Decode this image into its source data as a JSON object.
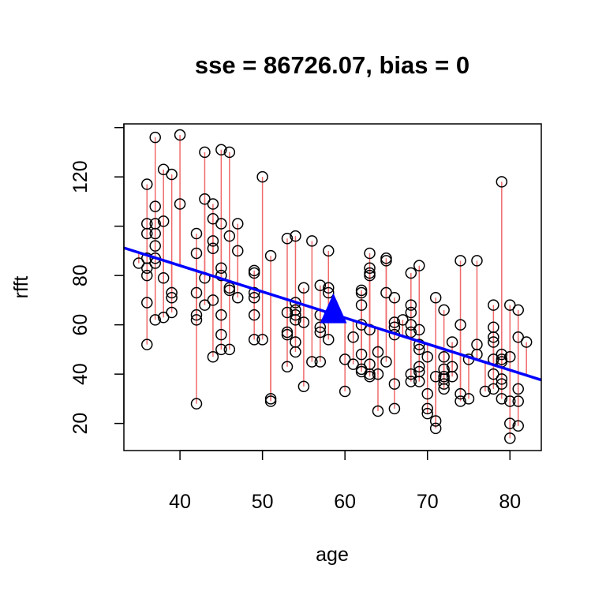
{
  "chart_data": {
    "type": "scatter",
    "title": "sse = 86726.07, bias = 0",
    "xlabel": "age",
    "ylabel": "rfft",
    "xlim": [
      33.2,
      83.8
    ],
    "ylim": [
      9.0,
      141.5
    ],
    "x_ticks": [
      40,
      50,
      60,
      70,
      80
    ],
    "y_ticks": [
      20,
      40,
      60,
      80,
      120
    ],
    "grid": false,
    "regression_line": {
      "intercept": 126.38,
      "slope": -1.0592,
      "color": "#0000ff"
    },
    "marker": {
      "x": 58.6,
      "y": 64.5,
      "shape": "triangle",
      "color": "#0000ff"
    },
    "residual_color": "#f06a6a",
    "points": [
      {
        "x": 35,
        "y": 85
      },
      {
        "x": 36,
        "y": 117
      },
      {
        "x": 36,
        "y": 101
      },
      {
        "x": 36,
        "y": 97
      },
      {
        "x": 36,
        "y": 87
      },
      {
        "x": 36,
        "y": 83
      },
      {
        "x": 36,
        "y": 80
      },
      {
        "x": 36,
        "y": 69
      },
      {
        "x": 36,
        "y": 52
      },
      {
        "x": 37,
        "y": 136
      },
      {
        "x": 37,
        "y": 108
      },
      {
        "x": 37,
        "y": 101
      },
      {
        "x": 37,
        "y": 97
      },
      {
        "x": 37,
        "y": 92
      },
      {
        "x": 37,
        "y": 87
      },
      {
        "x": 37,
        "y": 85
      },
      {
        "x": 37,
        "y": 62
      },
      {
        "x": 38,
        "y": 123
      },
      {
        "x": 38,
        "y": 102
      },
      {
        "x": 38,
        "y": 79
      },
      {
        "x": 38,
        "y": 63
      },
      {
        "x": 39,
        "y": 121
      },
      {
        "x": 39,
        "y": 73
      },
      {
        "x": 39,
        "y": 71
      },
      {
        "x": 39,
        "y": 65
      },
      {
        "x": 40,
        "y": 137
      },
      {
        "x": 40,
        "y": 109
      },
      {
        "x": 42,
        "y": 97
      },
      {
        "x": 42,
        "y": 89
      },
      {
        "x": 42,
        "y": 73
      },
      {
        "x": 42,
        "y": 64
      },
      {
        "x": 42,
        "y": 62
      },
      {
        "x": 42,
        "y": 28
      },
      {
        "x": 43,
        "y": 130
      },
      {
        "x": 43,
        "y": 111
      },
      {
        "x": 43,
        "y": 79
      },
      {
        "x": 43,
        "y": 68
      },
      {
        "x": 44,
        "y": 109
      },
      {
        "x": 44,
        "y": 103
      },
      {
        "x": 44,
        "y": 94
      },
      {
        "x": 44,
        "y": 91
      },
      {
        "x": 44,
        "y": 70
      },
      {
        "x": 44,
        "y": 47
      },
      {
        "x": 45,
        "y": 131
      },
      {
        "x": 45,
        "y": 101
      },
      {
        "x": 45,
        "y": 83
      },
      {
        "x": 45,
        "y": 80
      },
      {
        "x": 45,
        "y": 64
      },
      {
        "x": 45,
        "y": 56
      },
      {
        "x": 45,
        "y": 50
      },
      {
        "x": 46,
        "y": 130
      },
      {
        "x": 46,
        "y": 96
      },
      {
        "x": 46,
        "y": 75
      },
      {
        "x": 46,
        "y": 74
      },
      {
        "x": 46,
        "y": 50
      },
      {
        "x": 47,
        "y": 101
      },
      {
        "x": 47,
        "y": 90
      },
      {
        "x": 47,
        "y": 71
      },
      {
        "x": 49,
        "y": 82
      },
      {
        "x": 49,
        "y": 81
      },
      {
        "x": 49,
        "y": 73
      },
      {
        "x": 49,
        "y": 71
      },
      {
        "x": 49,
        "y": 64
      },
      {
        "x": 49,
        "y": 54
      },
      {
        "x": 50,
        "y": 120
      },
      {
        "x": 50,
        "y": 54
      },
      {
        "x": 51,
        "y": 88
      },
      {
        "x": 51,
        "y": 30
      },
      {
        "x": 51,
        "y": 29
      },
      {
        "x": 53,
        "y": 95
      },
      {
        "x": 53,
        "y": 65
      },
      {
        "x": 53,
        "y": 57
      },
      {
        "x": 53,
        "y": 56
      },
      {
        "x": 53,
        "y": 43
      },
      {
        "x": 54,
        "y": 96
      },
      {
        "x": 54,
        "y": 69
      },
      {
        "x": 54,
        "y": 66
      },
      {
        "x": 54,
        "y": 64
      },
      {
        "x": 54,
        "y": 62
      },
      {
        "x": 54,
        "y": 53
      },
      {
        "x": 54,
        "y": 49
      },
      {
        "x": 55,
        "y": 75
      },
      {
        "x": 55,
        "y": 61
      },
      {
        "x": 55,
        "y": 35
      },
      {
        "x": 56,
        "y": 94
      },
      {
        "x": 56,
        "y": 45
      },
      {
        "x": 57,
        "y": 76
      },
      {
        "x": 57,
        "y": 64
      },
      {
        "x": 57,
        "y": 59
      },
      {
        "x": 57,
        "y": 57
      },
      {
        "x": 57,
        "y": 45
      },
      {
        "x": 58,
        "y": 90
      },
      {
        "x": 58,
        "y": 75
      },
      {
        "x": 58,
        "y": 73
      },
      {
        "x": 58,
        "y": 54
      },
      {
        "x": 60,
        "y": 46
      },
      {
        "x": 60,
        "y": 33
      },
      {
        "x": 61,
        "y": 55
      },
      {
        "x": 61,
        "y": 44
      },
      {
        "x": 62,
        "y": 74
      },
      {
        "x": 62,
        "y": 73
      },
      {
        "x": 62,
        "y": 68
      },
      {
        "x": 62,
        "y": 60
      },
      {
        "x": 62,
        "y": 48
      },
      {
        "x": 62,
        "y": 42
      },
      {
        "x": 62,
        "y": 41
      },
      {
        "x": 63,
        "y": 89
      },
      {
        "x": 63,
        "y": 83
      },
      {
        "x": 63,
        "y": 81
      },
      {
        "x": 63,
        "y": 80
      },
      {
        "x": 63,
        "y": 58
      },
      {
        "x": 63,
        "y": 44
      },
      {
        "x": 63,
        "y": 40
      },
      {
        "x": 63,
        "y": 39
      },
      {
        "x": 64,
        "y": 49
      },
      {
        "x": 64,
        "y": 40
      },
      {
        "x": 64,
        "y": 25
      },
      {
        "x": 65,
        "y": 87
      },
      {
        "x": 65,
        "y": 86
      },
      {
        "x": 65,
        "y": 73
      },
      {
        "x": 65,
        "y": 45
      },
      {
        "x": 66,
        "y": 71
      },
      {
        "x": 66,
        "y": 61
      },
      {
        "x": 66,
        "y": 59
      },
      {
        "x": 66,
        "y": 56
      },
      {
        "x": 66,
        "y": 36
      },
      {
        "x": 66,
        "y": 26
      },
      {
        "x": 67,
        "y": 62
      },
      {
        "x": 68,
        "y": 81
      },
      {
        "x": 68,
        "y": 68
      },
      {
        "x": 68,
        "y": 65
      },
      {
        "x": 68,
        "y": 60
      },
      {
        "x": 68,
        "y": 57
      },
      {
        "x": 68,
        "y": 40
      },
      {
        "x": 68,
        "y": 37
      },
      {
        "x": 69,
        "y": 84
      },
      {
        "x": 69,
        "y": 58
      },
      {
        "x": 69,
        "y": 52
      },
      {
        "x": 69,
        "y": 50
      },
      {
        "x": 69,
        "y": 43
      },
      {
        "x": 69,
        "y": 41
      },
      {
        "x": 69,
        "y": 37
      },
      {
        "x": 70,
        "y": 47
      },
      {
        "x": 70,
        "y": 32
      },
      {
        "x": 70,
        "y": 26
      },
      {
        "x": 70,
        "y": 24
      },
      {
        "x": 71,
        "y": 71
      },
      {
        "x": 71,
        "y": 39
      },
      {
        "x": 71,
        "y": 21
      },
      {
        "x": 71,
        "y": 18
      },
      {
        "x": 72,
        "y": 66
      },
      {
        "x": 72,
        "y": 47
      },
      {
        "x": 72,
        "y": 42
      },
      {
        "x": 72,
        "y": 39
      },
      {
        "x": 72,
        "y": 38
      },
      {
        "x": 72,
        "y": 36
      },
      {
        "x": 72,
        "y": 34
      },
      {
        "x": 73,
        "y": 53
      },
      {
        "x": 73,
        "y": 43
      },
      {
        "x": 73,
        "y": 39
      },
      {
        "x": 74,
        "y": 86
      },
      {
        "x": 74,
        "y": 60
      },
      {
        "x": 74,
        "y": 32
      },
      {
        "x": 74,
        "y": 29
      },
      {
        "x": 75,
        "y": 46
      },
      {
        "x": 75,
        "y": 30
      },
      {
        "x": 76,
        "y": 86
      },
      {
        "x": 76,
        "y": 52
      },
      {
        "x": 76,
        "y": 48
      },
      {
        "x": 77,
        "y": 33
      },
      {
        "x": 78,
        "y": 68
      },
      {
        "x": 78,
        "y": 59
      },
      {
        "x": 78,
        "y": 55
      },
      {
        "x": 78,
        "y": 53
      },
      {
        "x": 78,
        "y": 46
      },
      {
        "x": 78,
        "y": 40
      },
      {
        "x": 78,
        "y": 34
      },
      {
        "x": 79,
        "y": 118
      },
      {
        "x": 79,
        "y": 48
      },
      {
        "x": 79,
        "y": 46
      },
      {
        "x": 79,
        "y": 45
      },
      {
        "x": 79,
        "y": 38
      },
      {
        "x": 79,
        "y": 36
      },
      {
        "x": 79,
        "y": 30
      },
      {
        "x": 80,
        "y": 68
      },
      {
        "x": 80,
        "y": 47
      },
      {
        "x": 80,
        "y": 29
      },
      {
        "x": 80,
        "y": 20
      },
      {
        "x": 80,
        "y": 14
      },
      {
        "x": 81,
        "y": 66
      },
      {
        "x": 81,
        "y": 55
      },
      {
        "x": 81,
        "y": 34
      },
      {
        "x": 81,
        "y": 29
      },
      {
        "x": 81,
        "y": 19
      },
      {
        "x": 82,
        "y": 53
      }
    ]
  }
}
